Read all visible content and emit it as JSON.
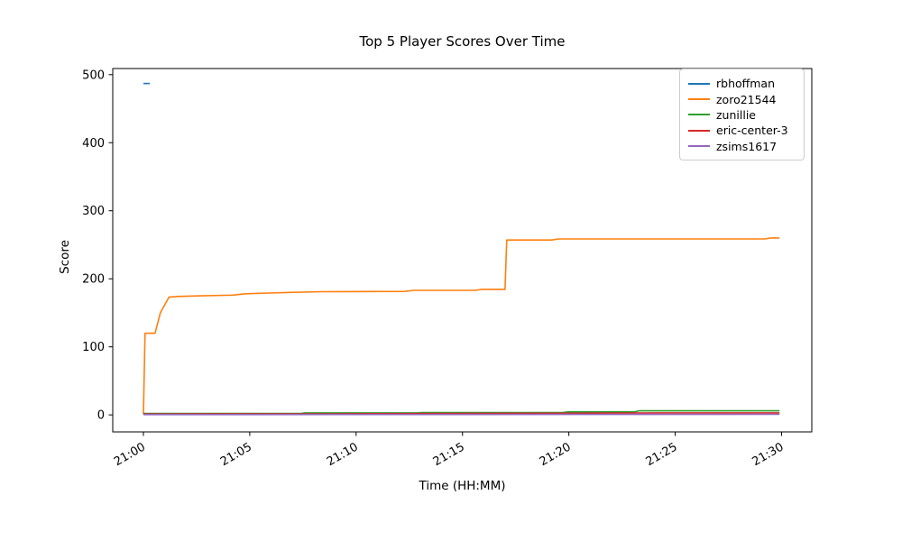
{
  "figure": {
    "title": "Top 5 Player Scores Over Time",
    "xlabel": "Time (HH:MM)",
    "ylabel": "Score"
  },
  "chart_data": {
    "type": "line",
    "title": "Top 5 Player Scores Over Time",
    "xlabel": "Time (HH:MM)",
    "ylabel": "Score",
    "grid": false,
    "legend_position": "upper right",
    "x_unit": "minutes after 21:00",
    "xlim": [
      -1.44,
      31.42
    ],
    "ylim": [
      -25,
      509
    ],
    "x_ticks": [
      {
        "label": "21:00",
        "minute": 0
      },
      {
        "label": "21:05",
        "minute": 5
      },
      {
        "label": "21:10",
        "minute": 10
      },
      {
        "label": "21:15",
        "minute": 15
      },
      {
        "label": "21:20",
        "minute": 20
      },
      {
        "label": "21:25",
        "minute": 25
      },
      {
        "label": "21:30",
        "minute": 30
      }
    ],
    "y_ticks": [
      0,
      100,
      200,
      300,
      400,
      500
    ],
    "series": [
      {
        "name": "rbhoffman",
        "color": "#1f77b4",
        "points": [
          [
            0,
            487
          ],
          [
            0.3,
            487
          ]
        ]
      },
      {
        "name": "zoro21544",
        "color": "#ff7f0e",
        "points": [
          [
            0,
            1
          ],
          [
            0.08,
            120
          ],
          [
            0.55,
            120
          ],
          [
            0.8,
            150
          ],
          [
            1.2,
            173
          ],
          [
            1.6,
            174
          ],
          [
            2.7,
            175
          ],
          [
            4.2,
            176
          ],
          [
            4.8,
            178
          ],
          [
            5.9,
            179
          ],
          [
            6.9,
            180
          ],
          [
            8.4,
            181
          ],
          [
            12.3,
            181.5
          ],
          [
            12.7,
            183
          ],
          [
            15.6,
            183
          ],
          [
            15.9,
            184.5
          ],
          [
            17.0,
            184.5
          ],
          [
            17.08,
            257
          ],
          [
            19.2,
            257
          ],
          [
            19.5,
            258.5
          ],
          [
            29.2,
            258.5
          ],
          [
            29.5,
            260
          ],
          [
            29.9,
            260
          ]
        ]
      },
      {
        "name": "zunillie",
        "color": "#2ca02c",
        "points": [
          [
            0,
            2
          ],
          [
            7.4,
            2
          ],
          [
            7.6,
            3
          ],
          [
            12.9,
            3
          ],
          [
            13.1,
            3.5
          ],
          [
            19.7,
            3.5
          ],
          [
            20.0,
            4.5
          ],
          [
            23.1,
            4.5
          ],
          [
            23.3,
            6
          ],
          [
            29.9,
            6
          ]
        ]
      },
      {
        "name": "eric-center-3",
        "color": "#d62728",
        "points": [
          [
            0,
            1.2
          ],
          [
            9,
            1.5
          ],
          [
            15,
            2
          ],
          [
            21,
            2.5
          ],
          [
            24.5,
            3
          ],
          [
            29.9,
            3
          ]
        ]
      },
      {
        "name": "zsims1617",
        "color": "#9467bd",
        "points": [
          [
            0,
            0.4
          ],
          [
            12,
            0.6
          ],
          [
            29.9,
            0.8
          ]
        ]
      }
    ]
  }
}
